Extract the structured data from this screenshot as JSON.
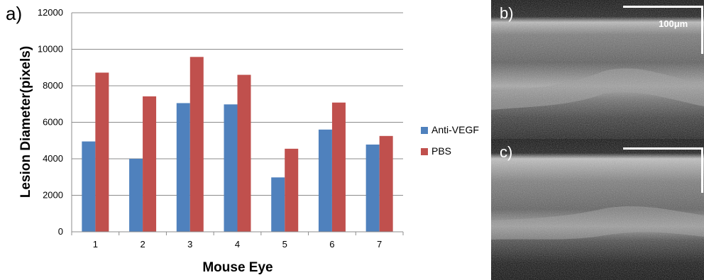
{
  "chart_data": {
    "type": "bar",
    "panel_label": "a)",
    "categories": [
      "1",
      "2",
      "3",
      "4",
      "5",
      "6",
      "7"
    ],
    "series": [
      {
        "name": "Anti-VEGF",
        "color": "#4f81bd",
        "values": [
          4950,
          4000,
          7050,
          6980,
          2980,
          5600,
          4780
        ]
      },
      {
        "name": "PBS",
        "color": "#c0504d",
        "values": [
          8720,
          7420,
          9580,
          8600,
          4550,
          7080,
          5250
        ]
      }
    ],
    "xlabel": "Mouse Eye",
    "ylabel": "Lesion Diameter(pixels)",
    "ylim": [
      0,
      12000
    ],
    "yticks": [
      0,
      2000,
      4000,
      6000,
      8000,
      10000,
      12000
    ],
    "grid": true,
    "legend_position": "right"
  },
  "images": [
    {
      "panel_label": "b)",
      "scale_bar_label": "100μm"
    },
    {
      "panel_label": "c)"
    }
  ]
}
